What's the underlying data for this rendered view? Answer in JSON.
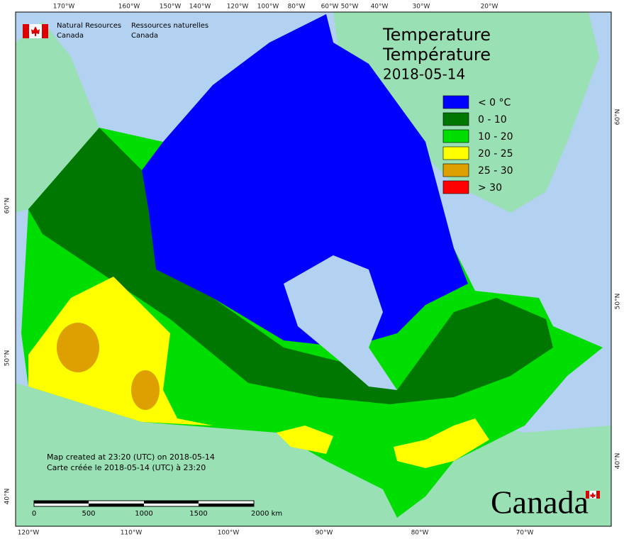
{
  "header": {
    "agency_en": [
      "Natural Resources",
      "Canada"
    ],
    "agency_fr": [
      "Ressources naturelles",
      "Canada"
    ]
  },
  "title": [
    "Temperature",
    "Température",
    "2018-05-14"
  ],
  "legend": {
    "items": [
      {
        "label": "< 0 °C",
        "color": "#0000ff"
      },
      {
        "label": "0 - 10",
        "color": "#007700"
      },
      {
        "label": "10 - 20",
        "color": "#00dd00"
      },
      {
        "label": "20 - 25",
        "color": "#ffff00"
      },
      {
        "label": "25 - 30",
        "color": "#dda000"
      },
      {
        "label": "> 30",
        "color": "#ff0000"
      }
    ]
  },
  "graticule": {
    "top": [
      "170°W",
      "160°W",
      "150°W",
      "140°W",
      "120°W",
      "100°W",
      "80°W",
      "60°W",
      "50°W",
      "40°W",
      "30°W",
      "20°W"
    ],
    "bottom": [
      "120°W",
      "110°W",
      "100°W",
      "90°W",
      "80°W",
      "70°W"
    ],
    "left": [
      "60°N",
      "50°N",
      "40°N"
    ],
    "right": [
      "60°N",
      "50°N",
      "40°N"
    ]
  },
  "scale_bar": [
    "0",
    "500",
    "1000",
    "1500",
    "2000  km"
  ],
  "footer": [
    "Map created at 23:20 (UTC) on 2018-05-14",
    "Carte créée le 2018-05-14 (UTC) à 23:20"
  ],
  "wordmark": "Canada"
}
